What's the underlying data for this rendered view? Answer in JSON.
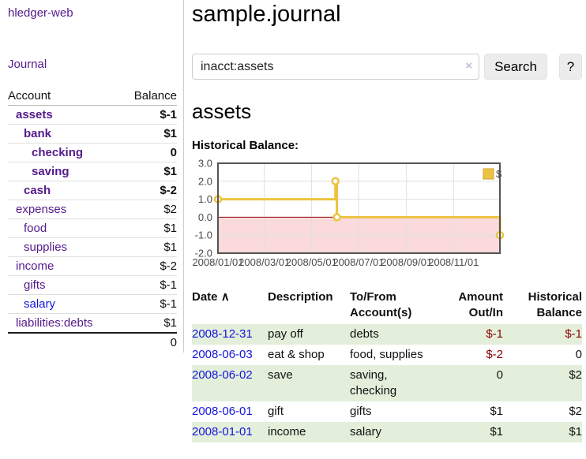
{
  "colors": {
    "link_purple": "#551a8b",
    "link_blue": "#1414dd",
    "negative_dark": "#8b0000",
    "negative_light": "#b26b6b",
    "row_green": "#e3efdb",
    "chart_gold": "#edc240",
    "chart_pink": "#fadadb",
    "zero_line": "#8b0000"
  },
  "app": {
    "title": "hledger-web"
  },
  "sidebar": {
    "nav_journal": "Journal",
    "accounts": {
      "col_account": "Account",
      "col_balance": "Balance",
      "rows": [
        {
          "name": "assets",
          "depth": 1,
          "bold": true,
          "link": "purple",
          "balance": "$-1",
          "neg": "dark"
        },
        {
          "name": "bank",
          "depth": 2,
          "bold": true,
          "link": "purple",
          "balance": "$1",
          "neg": "none"
        },
        {
          "name": "checking",
          "depth": 3,
          "bold": true,
          "link": "purple",
          "balance": "0",
          "neg": "none"
        },
        {
          "name": "saving",
          "depth": 3,
          "bold": true,
          "link": "purple",
          "balance": "$1",
          "neg": "none"
        },
        {
          "name": "cash",
          "depth": 2,
          "bold": true,
          "link": "purple",
          "balance": "$-2",
          "neg": "dark"
        },
        {
          "name": "expenses",
          "depth": 1,
          "bold": false,
          "link": "purple",
          "balance": "$2",
          "neg": "none"
        },
        {
          "name": "food",
          "depth": 2,
          "bold": false,
          "link": "purple",
          "balance": "$1",
          "neg": "none"
        },
        {
          "name": "supplies",
          "depth": 2,
          "bold": false,
          "link": "purple",
          "balance": "$1",
          "neg": "none"
        },
        {
          "name": "income",
          "depth": 1,
          "bold": false,
          "link": "purple",
          "balance": "$-2",
          "neg": "light"
        },
        {
          "name": "gifts",
          "depth": 2,
          "bold": false,
          "link": "purple",
          "balance": "$-1",
          "neg": "light"
        },
        {
          "name": "salary",
          "depth": 2,
          "bold": false,
          "link": "blue",
          "balance": "$-1",
          "neg": "light"
        },
        {
          "name": "liabilities:debts",
          "depth": 1,
          "bold": false,
          "link": "purple",
          "balance": "$1",
          "neg": "none"
        }
      ],
      "total": "0"
    }
  },
  "main": {
    "title": "sample.journal",
    "search": {
      "value": "inacct:assets",
      "clear": "×",
      "button": "Search",
      "help": "?"
    },
    "heading": "assets",
    "chart_label": "Historical Balance:"
  },
  "chart_data": {
    "type": "line",
    "step": true,
    "title": "Historical Balance",
    "legend": [
      {
        "label": "$",
        "color": "#edc240"
      }
    ],
    "legend_position": "top-right",
    "x_range": [
      "2008-01-01",
      "2008-12-31"
    ],
    "ylim": [
      -2,
      3
    ],
    "y_ticks": [
      "3.0",
      "2.0",
      "1.0",
      "0.0",
      "-1.0",
      "-2.0"
    ],
    "x_ticks": [
      {
        "date": "2008-01-01",
        "label": "2008/01/01"
      },
      {
        "date": "2008-03-01",
        "label": "2008/03/01"
      },
      {
        "date": "2008-05-01",
        "label": "2008/05/01"
      },
      {
        "date": "2008-07-01",
        "label": "2008/07/01"
      },
      {
        "date": "2008-09-01",
        "label": "2008/09/01"
      },
      {
        "date": "2008-11-01",
        "label": "2008/11/01"
      }
    ],
    "series": [
      {
        "name": "$",
        "color": "#edc240",
        "points": [
          {
            "date": "2008-01-01",
            "value": 1
          },
          {
            "date": "2008-06-01",
            "value": 2
          },
          {
            "date": "2008-06-03",
            "value": 0
          },
          {
            "date": "2008-12-31",
            "value": -1
          }
        ]
      }
    ],
    "grid": true,
    "negative_region": true
  },
  "transactions": {
    "sort_indicator": "∧",
    "headers": {
      "date": "Date",
      "description": "Description",
      "accounts": "To/From Account(s)",
      "amount": "Amount Out/In",
      "balance": "Historical Balance"
    },
    "rows": [
      {
        "date": "2008-12-31",
        "description": "pay off",
        "accounts": "debts",
        "amount": "$-1",
        "amount_neg": true,
        "balance": "$-1",
        "balance_neg": true
      },
      {
        "date": "2008-06-03",
        "description": "eat & shop",
        "accounts": "food, supplies",
        "amount": "$-2",
        "amount_neg": true,
        "balance": "0",
        "balance_neg": false
      },
      {
        "date": "2008-06-02",
        "description": "save",
        "accounts": "saving, checking",
        "amount": "0",
        "amount_neg": false,
        "balance": "$2",
        "balance_neg": false
      },
      {
        "date": "2008-06-01",
        "description": "gift",
        "accounts": "gifts",
        "amount": "$1",
        "amount_neg": false,
        "balance": "$2",
        "balance_neg": false
      },
      {
        "date": "2008-01-01",
        "description": "income",
        "accounts": "salary",
        "amount": "$1",
        "amount_neg": false,
        "balance": "$1",
        "balance_neg": false
      }
    ]
  }
}
